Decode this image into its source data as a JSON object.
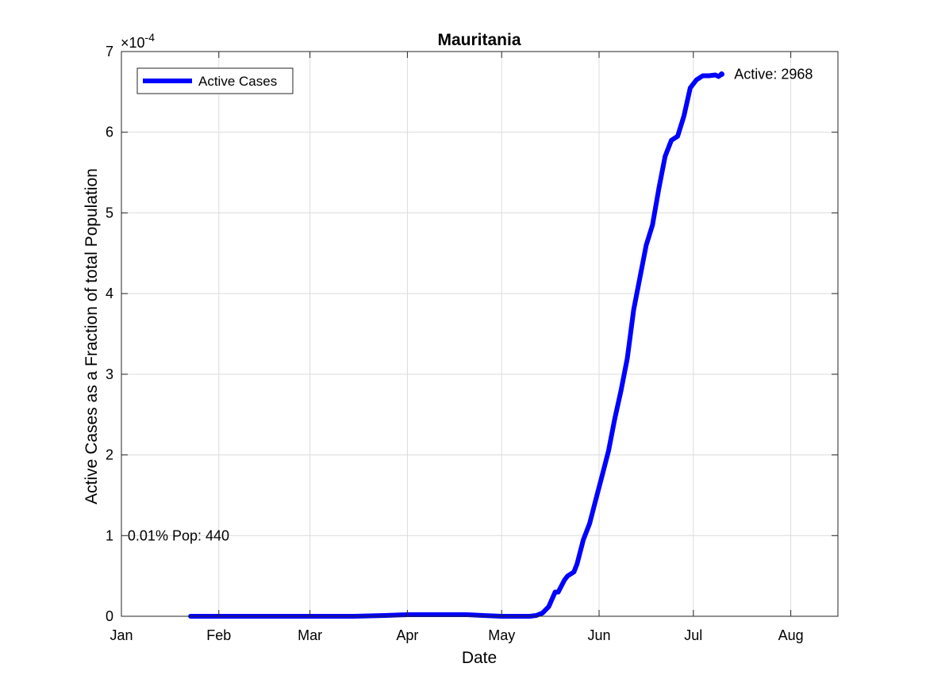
{
  "chart_data": {
    "type": "line",
    "title": "Mauritania",
    "xlabel": "Date",
    "ylabel": "Active Cases as a Fraction of total Population",
    "y_exponent_label": "×10",
    "y_exponent_power": "-4",
    "y_multiplier": 0.0001,
    "ylim": [
      0,
      7
    ],
    "yticks": [
      0,
      1,
      2,
      3,
      4,
      5,
      6,
      7
    ],
    "yticklabels": [
      "0",
      "1",
      "2",
      "3",
      "4",
      "5",
      "6",
      "7"
    ],
    "xlim": [
      "2020-01-01",
      "2020-08-16"
    ],
    "xticks": [
      "2020-01-01",
      "2020-02-01",
      "2020-03-01",
      "2020-04-01",
      "2020-05-01",
      "2020-06-01",
      "2020-07-01",
      "2020-08-01"
    ],
    "xticklabels": [
      "Jan",
      "Feb",
      "Mar",
      "Apr",
      "May",
      "Jun",
      "Jul",
      "Aug"
    ],
    "grid": true,
    "legend_position": "top-left",
    "series": [
      {
        "name": "Active Cases",
        "color": "#0000ff",
        "points": [
          [
            "2020-01-23",
            0
          ],
          [
            "2020-02-15",
            0
          ],
          [
            "2020-03-15",
            0
          ],
          [
            "2020-03-25",
            0.01
          ],
          [
            "2020-04-01",
            0.02
          ],
          [
            "2020-04-10",
            0.02
          ],
          [
            "2020-04-20",
            0.02
          ],
          [
            "2020-04-25",
            0.01
          ],
          [
            "2020-05-01",
            0.0
          ],
          [
            "2020-05-10",
            0.0
          ],
          [
            "2020-05-12",
            0.01
          ],
          [
            "2020-05-14",
            0.04
          ],
          [
            "2020-05-16",
            0.12
          ],
          [
            "2020-05-18",
            0.3
          ],
          [
            "2020-05-19",
            0.3
          ],
          [
            "2020-05-21",
            0.45
          ],
          [
            "2020-05-22",
            0.5
          ],
          [
            "2020-05-24",
            0.55
          ],
          [
            "2020-05-25",
            0.65
          ],
          [
            "2020-05-27",
            0.95
          ],
          [
            "2020-05-29",
            1.15
          ],
          [
            "2020-05-31",
            1.45
          ],
          [
            "2020-06-02",
            1.75
          ],
          [
            "2020-06-04",
            2.05
          ],
          [
            "2020-06-06",
            2.45
          ],
          [
            "2020-06-08",
            2.8
          ],
          [
            "2020-06-10",
            3.2
          ],
          [
            "2020-06-12",
            3.8
          ],
          [
            "2020-06-14",
            4.2
          ],
          [
            "2020-06-16",
            4.6
          ],
          [
            "2020-06-18",
            4.85
          ],
          [
            "2020-06-20",
            5.3
          ],
          [
            "2020-06-22",
            5.7
          ],
          [
            "2020-06-24",
            5.9
          ],
          [
            "2020-06-26",
            5.95
          ],
          [
            "2020-06-28",
            6.2
          ],
          [
            "2020-06-30",
            6.55
          ],
          [
            "2020-07-02",
            6.65
          ],
          [
            "2020-07-04",
            6.7
          ],
          [
            "2020-07-06",
            6.7
          ],
          [
            "2020-07-08",
            6.71
          ],
          [
            "2020-07-09",
            6.69
          ],
          [
            "2020-07-10",
            6.72
          ]
        ]
      }
    ],
    "annotations": [
      {
        "text": "Active: 2968",
        "x": "2020-07-14",
        "y": 6.72
      },
      {
        "text": "0.01% Pop: 440",
        "x": "2020-01-03",
        "y": 1.0
      }
    ]
  }
}
